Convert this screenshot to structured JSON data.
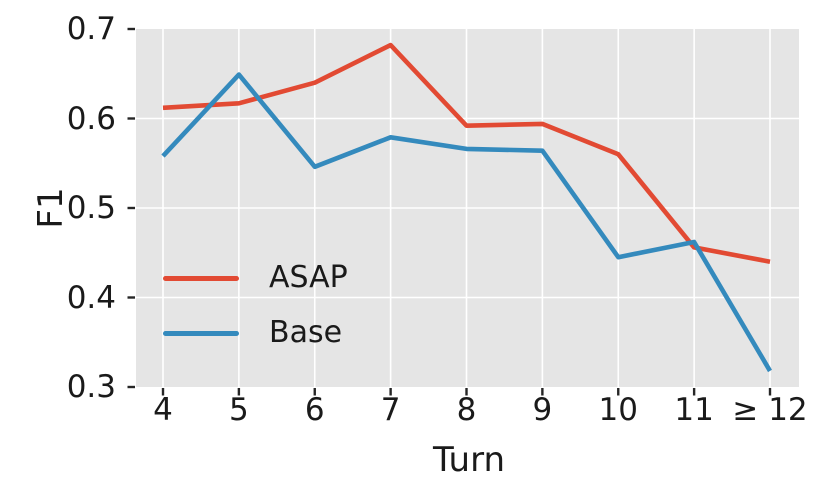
{
  "chart_data": {
    "type": "line",
    "title": "",
    "xlabel": "Turn",
    "ylabel": "F1",
    "categories": [
      "4",
      "5",
      "6",
      "7",
      "8",
      "9",
      "10",
      "11",
      "≥ 12"
    ],
    "x_tick_labels": [
      "4",
      "5",
      "6",
      "7",
      "8",
      "9",
      "10",
      "11",
      "≥ 12"
    ],
    "y_ticks": [
      0.3,
      0.4,
      0.5,
      0.6,
      0.7
    ],
    "y_tick_labels": [
      "0.3",
      "0.4",
      "0.5",
      "0.6",
      "0.7"
    ],
    "ylim": [
      0.3,
      0.7
    ],
    "grid": true,
    "legend_position": "lower-left",
    "plot_bg_color": "#E5E5E5",
    "grid_color": "#FFFFFF",
    "tick_color": "#262626",
    "series": [
      {
        "name": "ASAP",
        "color": "#E24A33",
        "values": [
          0.612,
          0.617,
          0.64,
          0.682,
          0.592,
          0.594,
          0.56,
          0.456,
          0.44
        ]
      },
      {
        "name": "Base",
        "color": "#348ABD",
        "values": [
          0.558,
          0.649,
          0.546,
          0.579,
          0.566,
          0.564,
          0.445,
          0.462,
          0.318
        ]
      }
    ]
  }
}
